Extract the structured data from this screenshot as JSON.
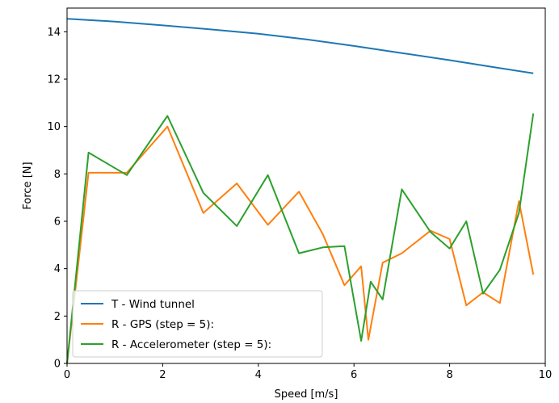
{
  "chart_data": {
    "type": "line",
    "title": "",
    "xlabel": "Speed [m/s]",
    "ylabel": "Force [N]",
    "xlim": [
      0,
      10
    ],
    "ylim": [
      0,
      15
    ],
    "xticks": [
      0,
      2,
      4,
      6,
      8,
      10
    ],
    "yticks": [
      0,
      2,
      4,
      6,
      8,
      10,
      12,
      14
    ],
    "grid": false,
    "legend_position": "lower-left",
    "series": [
      {
        "name": "T - Wind tunnel",
        "color": "#1f77b4",
        "x": [
          0,
          1,
          2,
          3,
          4,
          5,
          6,
          7,
          8,
          9,
          9.75
        ],
        "y": [
          14.55,
          14.43,
          14.27,
          14.1,
          13.92,
          13.68,
          13.4,
          13.1,
          12.8,
          12.48,
          12.25
        ]
      },
      {
        "name": "R - GPS (step = 5):",
        "color": "#ff7f0e",
        "x": [
          0,
          0.45,
          1.25,
          2.1,
          2.85,
          3.55,
          4.2,
          4.85,
          5.35,
          5.8,
          6.15,
          6.3,
          6.6,
          7.0,
          7.6,
          8.0,
          8.35,
          8.7,
          9.05,
          9.45,
          9.75
        ],
        "y": [
          0,
          8.05,
          8.05,
          10.0,
          6.35,
          7.6,
          5.85,
          7.25,
          5.45,
          3.3,
          4.1,
          1.0,
          4.25,
          4.65,
          5.6,
          5.25,
          2.45,
          3.0,
          2.55,
          6.85,
          3.75
        ]
      },
      {
        "name": "R - Accelerometer (step = 5):",
        "color": "#2ca02c",
        "x": [
          0,
          0.45,
          1.25,
          2.1,
          2.85,
          3.55,
          4.2,
          4.85,
          5.35,
          5.8,
          6.15,
          6.35,
          6.6,
          7.0,
          7.6,
          8.0,
          8.35,
          8.7,
          9.05,
          9.45,
          9.75
        ],
        "y": [
          0,
          8.9,
          7.95,
          10.45,
          7.2,
          5.8,
          7.95,
          4.65,
          4.9,
          4.95,
          0.95,
          3.45,
          2.7,
          7.35,
          5.55,
          4.85,
          6.0,
          2.95,
          3.95,
          6.35,
          10.55
        ]
      }
    ]
  }
}
